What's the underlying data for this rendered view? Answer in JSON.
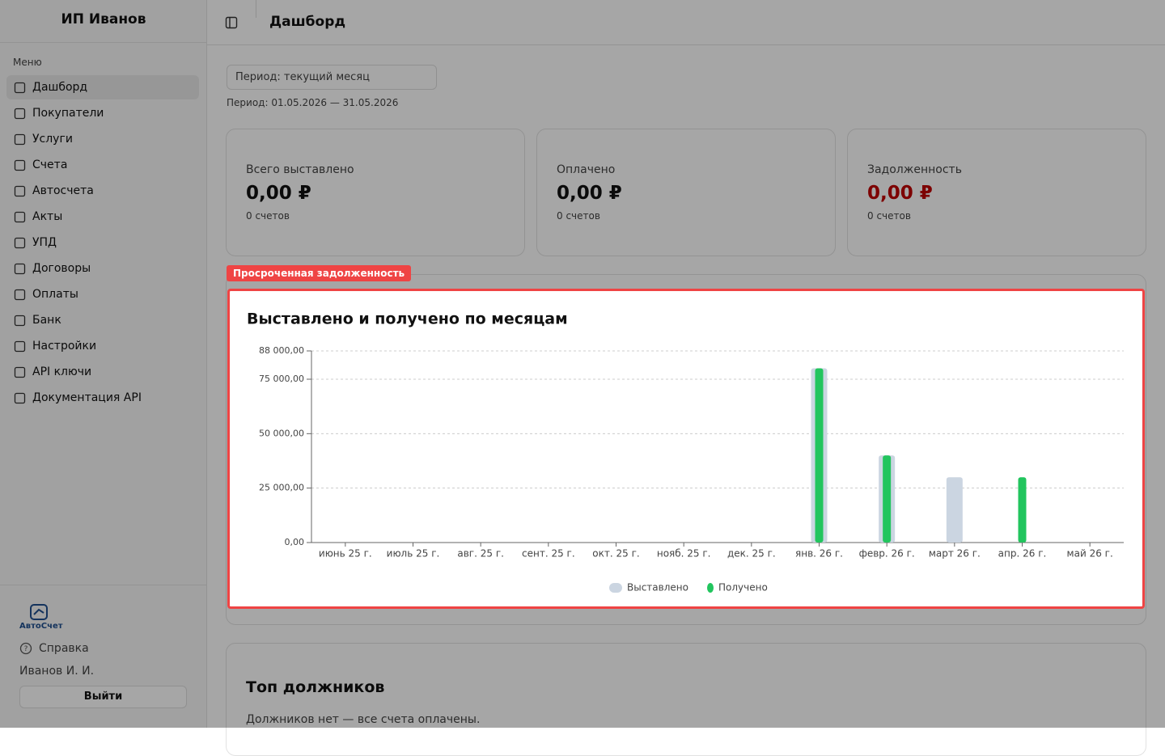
{
  "sidebar": {
    "brand": "ИП Иванов",
    "menu_label": "Меню",
    "items": [
      "Дашборд",
      "Покупатели",
      "Услуги",
      "Счета",
      "Автосчета",
      "Акты",
      "УПД",
      "Договоры",
      "Оплаты",
      "Банк",
      "Настройки",
      "API ключи",
      "Документация API"
    ],
    "logo_text": "АвтоСчет",
    "help": "Справка",
    "user": "Иванов И. И.",
    "logout": "Выйти"
  },
  "header": {
    "title": "Дашборд"
  },
  "filter": {
    "period_select": "Период: текущий месяц",
    "period_range": "Период: 01.05.2026 — 31.05.2026"
  },
  "stats": [
    {
      "label": "Всего выставлено",
      "value": "0,00 ₽",
      "count": "0 счетов"
    },
    {
      "label": "Оплачено",
      "value": "0,00 ₽",
      "count": "0 счетов"
    },
    {
      "label": "Задолженность",
      "value": "0,00 ₽",
      "count": "0 счетов"
    }
  ],
  "highlight_label": "Просроченная задолженность",
  "chart_data": {
    "type": "bar",
    "title": "Выставлено и получено по месяцам",
    "categories": [
      "июнь 25 г.",
      "июль 25 г.",
      "авг. 25 г.",
      "сент. 25 г.",
      "окт. 25 г.",
      "нояб. 25 г.",
      "дек. 25 г.",
      "янв. 26 г.",
      "февр. 26 г.",
      "март 26 г.",
      "апр. 26 г.",
      "май 26 г."
    ],
    "series": [
      {
        "name": "Выставлено",
        "color": "#cbd5e1",
        "values": [
          0,
          0,
          0,
          0,
          0,
          0,
          0,
          80000,
          40000,
          30000,
          0,
          0
        ]
      },
      {
        "name": "Получено",
        "color": "#22c55e",
        "values": [
          0,
          0,
          0,
          0,
          0,
          0,
          0,
          80000,
          40000,
          0,
          30000,
          0
        ]
      }
    ],
    "ylim": [
      0,
      88000
    ],
    "yticks": [
      {
        "value": 0,
        "label": "0,00"
      },
      {
        "value": 25000,
        "label": "25 000,00"
      },
      {
        "value": 50000,
        "label": "50 000,00"
      },
      {
        "value": 75000,
        "label": "75 000,00"
      },
      {
        "value": 88000,
        "label": "88 000,00"
      }
    ],
    "grid": true,
    "legend": "bottom"
  },
  "debtors": {
    "title": "Топ должников",
    "empty": "Должников нет — все счета оплачены."
  }
}
